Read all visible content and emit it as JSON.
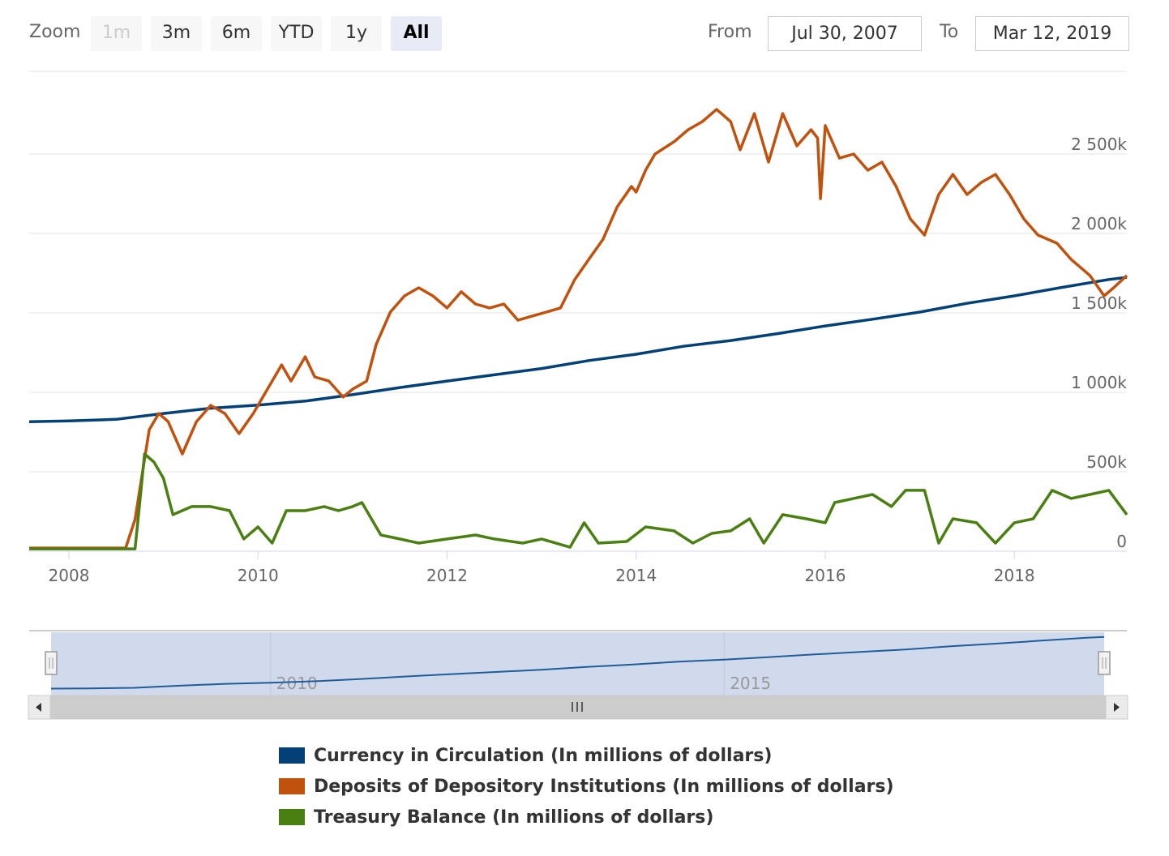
{
  "toolbar": {
    "zoom_label": "Zoom",
    "buttons": [
      {
        "label": "1m",
        "state": "disabled"
      },
      {
        "label": "3m",
        "state": "normal"
      },
      {
        "label": "6m",
        "state": "normal"
      },
      {
        "label": "YTD",
        "state": "normal"
      },
      {
        "label": "1y",
        "state": "normal"
      },
      {
        "label": "All",
        "state": "active"
      }
    ],
    "from_label": "From",
    "from_value": "Jul 30, 2007",
    "to_label": "To",
    "to_value": "Mar 12, 2019"
  },
  "chart_data": {
    "type": "line",
    "title": "",
    "xlabel": "",
    "ylabel": "",
    "xlim": [
      2007.58,
      2019.19
    ],
    "ylim": [
      0,
      3000000
    ],
    "grid": true,
    "legend_position": "bottom",
    "x_ticks": [
      2008,
      2010,
      2012,
      2014,
      2016,
      2018
    ],
    "x_tick_labels": [
      "2008",
      "2010",
      "2012",
      "2014",
      "2016",
      "2018"
    ],
    "y_ticks": [
      0,
      500000,
      1000000,
      1500000,
      2000000,
      2500000
    ],
    "y_tick_labels": [
      "0",
      "500k",
      "1 000k",
      "1 500k",
      "2 000k",
      "2 500k"
    ],
    "series": [
      {
        "name": "Currency in Circulation (In millions of dollars)",
        "color": "#034078",
        "x": [
          2007.58,
          2008.0,
          2008.5,
          2009.0,
          2009.5,
          2010.0,
          2010.5,
          2011.0,
          2011.5,
          2012.0,
          2012.5,
          2013.0,
          2013.5,
          2014.0,
          2014.5,
          2015.0,
          2015.5,
          2016.0,
          2016.5,
          2017.0,
          2017.5,
          2018.0,
          2018.5,
          2019.0,
          2019.19
        ],
        "values": [
          815000,
          820000,
          830000,
          867000,
          900000,
          920000,
          945000,
          985000,
          1030000,
          1071000,
          1110000,
          1150000,
          1200000,
          1240000,
          1290000,
          1326000,
          1370000,
          1418000,
          1460000,
          1505000,
          1560000,
          1607000,
          1660000,
          1710000,
          1724000
        ]
      },
      {
        "name": "Deposits of Depository Institutions (In millions of dollars)",
        "color": "#c0520e",
        "x": [
          2007.58,
          2008.6,
          2008.7,
          2008.85,
          2008.95,
          2009.05,
          2009.2,
          2009.35,
          2009.5,
          2009.65,
          2009.8,
          2009.95,
          2010.1,
          2010.25,
          2010.35,
          2010.5,
          2010.6,
          2010.75,
          2010.9,
          2011.0,
          2011.15,
          2011.25,
          2011.4,
          2011.55,
          2011.7,
          2011.85,
          2012.0,
          2012.15,
          2012.3,
          2012.45,
          2012.6,
          2012.75,
          2012.9,
          2013.05,
          2013.2,
          2013.35,
          2013.5,
          2013.65,
          2013.8,
          2013.95,
          2014.0,
          2014.1,
          2014.2,
          2014.4,
          2014.55,
          2014.7,
          2014.85,
          2015.0,
          2015.1,
          2015.25,
          2015.4,
          2015.55,
          2015.7,
          2015.85,
          2015.92,
          2015.95,
          2016.0,
          2016.15,
          2016.3,
          2016.45,
          2016.6,
          2016.75,
          2016.9,
          2017.05,
          2017.2,
          2017.35,
          2017.5,
          2017.65,
          2017.8,
          2017.95,
          2018.1,
          2018.25,
          2018.45,
          2018.6,
          2018.8,
          2018.95,
          2019.05,
          2019.19
        ],
        "values": [
          20000,
          20000,
          200000,
          765000,
          867000,
          816000,
          612000,
          816000,
          918000,
          867000,
          740000,
          867000,
          1020000,
          1173000,
          1071000,
          1224000,
          1097000,
          1071000,
          970000,
          1020000,
          1071000,
          1301000,
          1505000,
          1607000,
          1658000,
          1607000,
          1531000,
          1633000,
          1556000,
          1531000,
          1556000,
          1454000,
          1480000,
          1505000,
          1531000,
          1709000,
          1837000,
          1964000,
          2168000,
          2296000,
          2260000,
          2398000,
          2500000,
          2577000,
          2653000,
          2704000,
          2781000,
          2704000,
          2526000,
          2755000,
          2449000,
          2755000,
          2551000,
          2653000,
          2600000,
          2219000,
          2679000,
          2474000,
          2500000,
          2398000,
          2449000,
          2296000,
          2092000,
          1990000,
          2245000,
          2372000,
          2245000,
          2321000,
          2372000,
          2245000,
          2092000,
          1990000,
          1939000,
          1837000,
          1735000,
          1607000,
          1658000,
          1735000
        ]
      },
      {
        "name": "Treasury Balance (In millions of dollars)",
        "color": "#4a7f12",
        "x": [
          2007.58,
          2008.7,
          2008.75,
          2008.8,
          2008.9,
          2009.0,
          2009.1,
          2009.3,
          2009.5,
          2009.7,
          2009.85,
          2010.0,
          2010.15,
          2010.3,
          2010.5,
          2010.7,
          2010.85,
          2011.0,
          2011.1,
          2011.3,
          2011.5,
          2011.7,
          2012.0,
          2012.3,
          2012.5,
          2012.8,
          2013.0,
          2013.3,
          2013.45,
          2013.6,
          2013.9,
          2014.1,
          2014.4,
          2014.6,
          2014.8,
          2015.0,
          2015.2,
          2015.35,
          2015.55,
          2015.8,
          2016.0,
          2016.1,
          2016.3,
          2016.5,
          2016.7,
          2016.85,
          2017.05,
          2017.2,
          2017.35,
          2017.6,
          2017.8,
          2018.0,
          2018.2,
          2018.4,
          2018.6,
          2018.8,
          2019.0,
          2019.19
        ],
        "values": [
          15000,
          15000,
          306000,
          612000,
          561000,
          459000,
          230000,
          281000,
          281000,
          255000,
          77000,
          153000,
          51000,
          255000,
          255000,
          281000,
          255000,
          281000,
          306000,
          102000,
          77000,
          51000,
          77000,
          102000,
          77000,
          51000,
          77000,
          25000,
          179000,
          51000,
          61000,
          153000,
          128000,
          51000,
          112000,
          128000,
          204000,
          51000,
          230000,
          204000,
          179000,
          306000,
          332000,
          357000,
          281000,
          383000,
          383000,
          51000,
          204000,
          179000,
          51000,
          179000,
          204000,
          383000,
          332000,
          357000,
          383000,
          230000
        ]
      }
    ],
    "navigator": {
      "x_tick_labels": [
        "2010",
        "2015"
      ],
      "x_ticks": [
        2010,
        2015
      ]
    }
  }
}
